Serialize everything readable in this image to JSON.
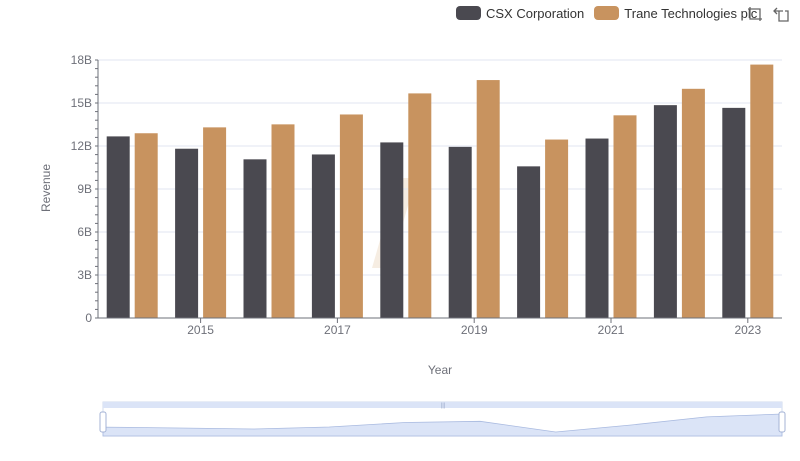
{
  "legend": [
    {
      "name": "CSX Corporation",
      "color": "#4a4950"
    },
    {
      "name": "Trane Technologies plc",
      "color": "#c8935f"
    }
  ],
  "toolbox": {
    "icons": [
      "zoom-icon",
      "restore-icon"
    ]
  },
  "chart_data": {
    "type": "bar",
    "xlabel": "Year",
    "ylabel": "Revenue",
    "x": [
      "2014",
      "2015",
      "2016",
      "2017",
      "2018",
      "2019",
      "2020",
      "2021",
      "2022",
      "2023"
    ],
    "x_tick_labels": [
      "2015",
      "2017",
      "2019",
      "2021",
      "2023"
    ],
    "ylim": [
      0,
      18000000000
    ],
    "y_ticks": [
      0,
      3000000000,
      6000000000,
      9000000000,
      12000000000,
      15000000000,
      18000000000
    ],
    "y_tick_labels": [
      "0",
      "3B",
      "6B",
      "9B",
      "12B",
      "15B",
      "18B"
    ],
    "grid": true,
    "legend_position": "top-right",
    "series": [
      {
        "name": "CSX Corporation",
        "color": "#4a4950",
        "values": [
          12670000000,
          11810000000,
          11070000000,
          11410000000,
          12250000000,
          11940000000,
          10580000000,
          12520000000,
          14850000000,
          14660000000
        ]
      },
      {
        "name": "Trane Technologies plc",
        "color": "#c8935f",
        "values": [
          12890000000,
          13300000000,
          13510000000,
          14200000000,
          15670000000,
          16600000000,
          12450000000,
          14140000000,
          15990000000,
          17680000000
        ]
      }
    ]
  }
}
